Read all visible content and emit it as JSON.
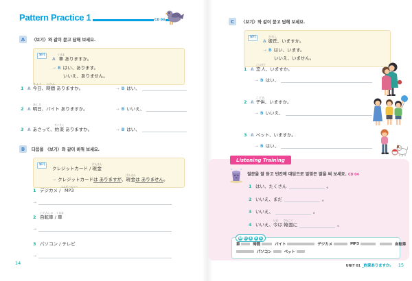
{
  "left": {
    "title": "Pattern Practice 1",
    "cd": "CD 03",
    "page_num": "14",
    "arrow": "→",
    "a": {
      "badge": "A",
      "instruction": "〈보기〉와 같이 묻고 답해 보세요.",
      "example": {
        "tag": "보기",
        "sp_a": "A",
        "q_word": {
          "b": "車",
          "r": "くるま"
        },
        "q_rest": " ありますか。",
        "sp_b": "B",
        "ans1": "はい、あります。",
        "ans2": "いいえ、ありません。"
      },
      "items": [
        {
          "num": "1",
          "sp": "A",
          "t0": "",
          "w1": {
            "b": "今日",
            "r": "きょう"
          },
          "t1": "、",
          "w2": {
            "b": "時間",
            "r": "じかん"
          },
          "t2": " ありますか。",
          "sp_b": "B",
          "ans": "はい、"
        },
        {
          "num": "2",
          "sp": "A",
          "t0": "",
          "w1": {
            "b": "明日",
            "r": "あした"
          },
          "t1": "、バイト ありますか。",
          "w2": null,
          "t2": "",
          "sp_b": "B",
          "ans": "いいえ、"
        },
        {
          "num": "3",
          "sp": "A",
          "t0": "あさって、",
          "w1": {
            "b": "約束",
            "r": "やくそく"
          },
          "t1": " ありますか。",
          "w2": null,
          "t2": "",
          "sp_b": "B",
          "ans": "はい、"
        }
      ]
    },
    "b": {
      "badge": "B",
      "instruction": "다음을 〈보기〉와 같이 바꿔 보세요.",
      "example": {
        "tag": "보기",
        "line1_pre": "クレジットカード / ",
        "line1_word": {
          "b": "現金",
          "r": "げんきん"
        },
        "ans_pre": "クレジットカード",
        "ans_u1": "は ありますが",
        "ans_mid": "、",
        "ans_word": {
          "b": "現金",
          "r": "げんきん"
        },
        "ans_u2": "は ありません",
        "ans_end": "。"
      },
      "items": [
        {
          "num": "1",
          "t0": "デジカメ / ",
          "w1": {
            "b": "MP3",
            "r": "エムピースリー"
          },
          "t1": "",
          "w2": null,
          "t2": ""
        },
        {
          "num": "2",
          "t0": "",
          "w1": {
            "b": "自転車",
            "r": "じてんしゃ"
          },
          "t1": " / ",
          "w2": {
            "b": "車",
            "r": "くるま"
          },
          "t2": ""
        },
        {
          "num": "3",
          "t0": "パソコン / テレビ",
          "w1": null,
          "t1": "",
          "w2": null,
          "t2": ""
        }
      ]
    }
  },
  "right": {
    "c": {
      "badge": "C",
      "instruction": "〈보기〉와 같이 묻고 답해 보세요.",
      "example": {
        "tag": "보기",
        "sp_a": "A",
        "q_word": {
          "b": "彼氏",
          "r": "かれし"
        },
        "q_rest": "、いますか。",
        "sp_b": "B",
        "ans1": "はい、います。",
        "ans2": "いいえ、いません。"
      },
      "items": [
        {
          "num": "1",
          "sp": "A",
          "w1": {
            "b": "恋人",
            "r": "こいびと"
          },
          "t1": "、いますか。",
          "sp_b": "B",
          "ans": "はい、",
          "illustration": "couple-hugging"
        },
        {
          "num": "2",
          "sp": "A",
          "w1": {
            "b": "子供",
            "r": "こども"
          },
          "t1": "、いますか。",
          "sp_b": "B",
          "ans": "いいえ、",
          "illustration": "three-children-with-balloon"
        },
        {
          "num": "3",
          "sp": "A",
          "w1": null,
          "t1": "ペット、いますか。",
          "sp_b": "B",
          "ans": "はい、",
          "illustration": "girl-with-dog-and-ball"
        }
      ]
    },
    "listening": {
      "banner": "Listening Training",
      "instruction": "질문을 잘 듣고 빈칸에 대답으로 알맞은 말을 써 보세요.",
      "cd": "CD 04",
      "items": [
        {
          "num": "1",
          "t0": "はい、たくさん",
          "w1": null,
          "t1": "",
          "w2": null,
          "t2": "",
          "end": "。"
        },
        {
          "num": "2",
          "t0": "いいえ、まだ",
          "w1": null,
          "t1": "",
          "w2": null,
          "t2": "",
          "end": "。"
        },
        {
          "num": "3",
          "t0": "いいえ、",
          "w1": null,
          "t1": "",
          "w2": null,
          "t2": "",
          "end": "。"
        },
        {
          "num": "4",
          "t0": "いいえ、",
          "w1": {
            "b": "今",
            "r": "いま"
          },
          "t1": "は ",
          "w2": {
            "b": "韓国",
            "r": "かんこく"
          },
          "t2": "に",
          "end": "。"
        }
      ]
    },
    "words_box": {
      "label_letters": [
        "W",
        "O",
        "R",
        "D",
        "S"
      ],
      "rows": [
        [
          {
            "word": "車"
          },
          {
            "word": "時間"
          },
          {
            "word": "バイト"
          },
          {
            "word": "デジカメ"
          },
          {
            "word": "MP3"
          },
          {
            "word": ""
          },
          {
            "word": "自転車"
          }
        ],
        [
          {
            "word": ""
          },
          {
            "word": "パソコン"
          },
          {
            "word": "ペット"
          }
        ]
      ]
    },
    "footer": {
      "unit": "UNIT 01",
      "lesson": "_約束ありますか。",
      "page_num": "15"
    }
  }
}
